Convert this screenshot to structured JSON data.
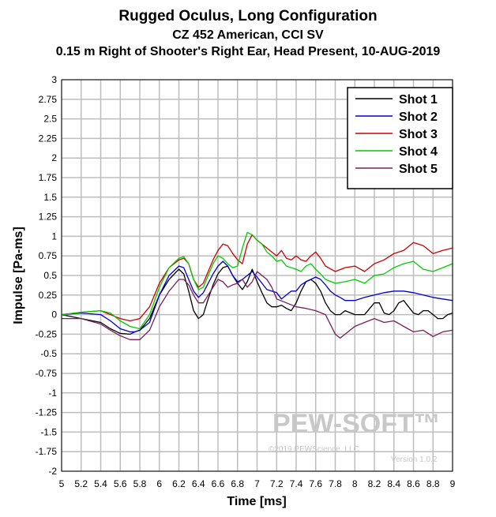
{
  "chart_data": {
    "type": "line",
    "title": "Rugged Oculus, Long Configuration",
    "subtitle": "CZ 452 American, CCI SV",
    "subtitle2": "0.15 m Right of Shooter's Right Ear, Head Present, 10-AUG-2019",
    "xlabel": "Time [ms]",
    "ylabel": "Impulse [Pa-ms]",
    "xlim": [
      5,
      9
    ],
    "ylim": [
      -2,
      3
    ],
    "xticks": [
      "5",
      "5.2",
      "5.4",
      "5.6",
      "5.8",
      "6",
      "6.2",
      "6.4",
      "6.6",
      "6.8",
      "7",
      "7.2",
      "7.4",
      "7.6",
      "7.8",
      "8",
      "8.2",
      "8.4",
      "8.6",
      "8.8",
      "9"
    ],
    "yticks": [
      "3",
      "2.75",
      "2.5",
      "2.25",
      "2",
      "1.75",
      "1.5",
      "1.25",
      "1",
      "0.75",
      "0.5",
      "0.25",
      "0",
      "-0.25",
      "-0.5",
      "-0.75",
      "-1",
      "-1.25",
      "-1.5",
      "-1.75",
      "-2"
    ],
    "grid": true,
    "legend_position": "top-right",
    "series": [
      {
        "name": "Shot 1",
        "color": "#000000",
        "x": [
          5,
          5.2,
          5.4,
          5.5,
          5.6,
          5.7,
          5.75,
          5.8,
          5.9,
          6.0,
          6.1,
          6.2,
          6.25,
          6.3,
          6.35,
          6.4,
          6.45,
          6.5,
          6.55,
          6.6,
          6.65,
          6.7,
          6.75,
          6.8,
          6.85,
          6.9,
          6.95,
          7.0,
          7.05,
          7.1,
          7.15,
          7.2,
          7.25,
          7.3,
          7.35,
          7.4,
          7.45,
          7.5,
          7.55,
          7.6,
          7.65,
          7.7,
          7.75,
          7.8,
          7.85,
          7.9,
          8.0,
          8.1,
          8.2,
          8.25,
          8.3,
          8.35,
          8.4,
          8.45,
          8.5,
          8.55,
          8.6,
          8.65,
          8.7,
          8.75,
          8.8,
          8.85,
          8.9,
          8.95,
          9.0
        ],
        "values": [
          0,
          -0.05,
          -0.1,
          -0.18,
          -0.24,
          -0.25,
          -0.22,
          -0.2,
          -0.05,
          0.25,
          0.45,
          0.58,
          0.52,
          0.3,
          0.05,
          -0.05,
          0.0,
          0.2,
          0.38,
          0.52,
          0.6,
          0.62,
          0.5,
          0.4,
          0.32,
          0.42,
          0.58,
          0.42,
          0.28,
          0.15,
          0.1,
          0.1,
          0.12,
          0.08,
          0.05,
          0.15,
          0.3,
          0.42,
          0.45,
          0.4,
          0.3,
          0.15,
          0.05,
          0.0,
          0.0,
          0.05,
          0.0,
          0.0,
          0.15,
          0.15,
          0.02,
          0.0,
          0.05,
          0.15,
          0.18,
          0.1,
          0.02,
          0.0,
          0.05,
          0.05,
          0.0,
          -0.05,
          -0.05,
          0.0,
          0.02
        ]
      },
      {
        "name": "Shot 2",
        "color": "#0000cc",
        "x": [
          5,
          5.2,
          5.4,
          5.5,
          5.6,
          5.7,
          5.75,
          5.8,
          5.9,
          6.0,
          6.1,
          6.2,
          6.25,
          6.3,
          6.35,
          6.4,
          6.45,
          6.5,
          6.55,
          6.6,
          6.65,
          6.7,
          6.75,
          6.8,
          6.85,
          6.9,
          6.95,
          7.0,
          7.05,
          7.1,
          7.15,
          7.2,
          7.25,
          7.3,
          7.35,
          7.4,
          7.45,
          7.5,
          7.55,
          7.6,
          7.65,
          7.7,
          7.75,
          7.8,
          7.85,
          7.9,
          8.0,
          8.1,
          8.2,
          8.3,
          8.4,
          8.5,
          8.6,
          8.7,
          8.8,
          8.9,
          9.0
        ],
        "values": [
          0,
          0.02,
          0.0,
          -0.08,
          -0.18,
          -0.22,
          -0.22,
          -0.2,
          -0.1,
          0.25,
          0.5,
          0.62,
          0.6,
          0.45,
          0.3,
          0.22,
          0.28,
          0.4,
          0.52,
          0.62,
          0.68,
          0.62,
          0.5,
          0.42,
          0.45,
          0.5,
          0.55,
          0.48,
          0.4,
          0.32,
          0.3,
          0.28,
          0.2,
          0.25,
          0.3,
          0.3,
          0.38,
          0.42,
          0.45,
          0.48,
          0.45,
          0.38,
          0.3,
          0.25,
          0.22,
          0.18,
          0.18,
          0.22,
          0.25,
          0.28,
          0.3,
          0.3,
          0.28,
          0.25,
          0.22,
          0.2,
          0.18
        ]
      },
      {
        "name": "Shot 3",
        "color": "#cc0000",
        "x": [
          5,
          5.2,
          5.4,
          5.5,
          5.6,
          5.7,
          5.8,
          5.9,
          6.0,
          6.1,
          6.2,
          6.25,
          6.3,
          6.35,
          6.4,
          6.45,
          6.5,
          6.55,
          6.6,
          6.65,
          6.7,
          6.75,
          6.8,
          6.85,
          6.9,
          6.95,
          7.0,
          7.05,
          7.1,
          7.15,
          7.2,
          7.25,
          7.3,
          7.35,
          7.4,
          7.45,
          7.5,
          7.55,
          7.6,
          7.65,
          7.7,
          7.8,
          7.9,
          8.0,
          8.1,
          8.2,
          8.3,
          8.4,
          8.5,
          8.6,
          8.7,
          8.8,
          8.9,
          9.0
        ],
        "values": [
          0.0,
          0.03,
          0.05,
          0.0,
          -0.05,
          -0.08,
          -0.05,
          0.1,
          0.4,
          0.6,
          0.7,
          0.72,
          0.65,
          0.45,
          0.35,
          0.4,
          0.55,
          0.7,
          0.82,
          0.9,
          0.88,
          0.78,
          0.7,
          0.65,
          0.9,
          1.02,
          0.95,
          0.9,
          0.85,
          0.8,
          0.75,
          0.82,
          0.72,
          0.7,
          0.75,
          0.7,
          0.68,
          0.75,
          0.8,
          0.72,
          0.62,
          0.55,
          0.6,
          0.62,
          0.55,
          0.65,
          0.7,
          0.78,
          0.82,
          0.92,
          0.88,
          0.78,
          0.82,
          0.85
        ]
      },
      {
        "name": "Shot 4",
        "color": "#00cc00",
        "x": [
          5,
          5.2,
          5.4,
          5.5,
          5.6,
          5.7,
          5.8,
          5.9,
          6.0,
          6.1,
          6.2,
          6.25,
          6.3,
          6.35,
          6.4,
          6.45,
          6.5,
          6.55,
          6.6,
          6.65,
          6.7,
          6.75,
          6.8,
          6.85,
          6.9,
          6.95,
          7.0,
          7.05,
          7.1,
          7.15,
          7.2,
          7.25,
          7.3,
          7.35,
          7.4,
          7.45,
          7.5,
          7.55,
          7.6,
          7.65,
          7.7,
          7.8,
          7.9,
          8.0,
          8.1,
          8.2,
          8.3,
          8.4,
          8.5,
          8.6,
          8.7,
          8.8,
          8.9,
          9.0
        ],
        "values": [
          0.0,
          0.03,
          0.05,
          0.02,
          -0.08,
          -0.15,
          -0.18,
          0.0,
          0.35,
          0.6,
          0.72,
          0.74,
          0.65,
          0.45,
          0.32,
          0.35,
          0.5,
          0.65,
          0.75,
          0.72,
          0.65,
          0.6,
          0.62,
          0.85,
          1.05,
          1.02,
          0.95,
          0.9,
          0.8,
          0.75,
          0.68,
          0.7,
          0.62,
          0.6,
          0.58,
          0.55,
          0.62,
          0.65,
          0.58,
          0.52,
          0.45,
          0.4,
          0.42,
          0.45,
          0.4,
          0.5,
          0.52,
          0.6,
          0.65,
          0.68,
          0.58,
          0.55,
          0.6,
          0.65
        ]
      },
      {
        "name": "Shot 5",
        "color": "#7a1f5a",
        "x": [
          5,
          5.2,
          5.4,
          5.5,
          5.6,
          5.7,
          5.8,
          5.9,
          6.0,
          6.1,
          6.2,
          6.25,
          6.3,
          6.35,
          6.4,
          6.45,
          6.5,
          6.55,
          6.6,
          6.65,
          6.7,
          6.75,
          6.8,
          6.85,
          6.9,
          6.95,
          7.0,
          7.05,
          7.1,
          7.15,
          7.2,
          7.3,
          7.4,
          7.5,
          7.6,
          7.7,
          7.8,
          7.85,
          7.9,
          8.0,
          8.1,
          8.2,
          8.3,
          8.4,
          8.5,
          8.6,
          8.7,
          8.8,
          8.9,
          9.0
        ],
        "values": [
          -0.05,
          -0.05,
          -0.12,
          -0.2,
          -0.27,
          -0.32,
          -0.32,
          -0.2,
          0.1,
          0.3,
          0.45,
          0.45,
          0.38,
          0.25,
          0.15,
          0.15,
          0.25,
          0.35,
          0.45,
          0.42,
          0.35,
          0.38,
          0.4,
          0.45,
          0.35,
          0.42,
          0.55,
          0.5,
          0.45,
          0.35,
          0.2,
          0.15,
          0.1,
          0.08,
          0.05,
          0.0,
          -0.25,
          -0.3,
          -0.25,
          -0.15,
          -0.1,
          -0.05,
          -0.1,
          -0.08,
          -0.15,
          -0.22,
          -0.2,
          -0.28,
          -0.22,
          -0.2
        ]
      }
    ]
  },
  "watermark": {
    "brand": "PEW-SOFT™",
    "copyright": "©2019 PEWScience, LLC",
    "version": "Version 1.0.2"
  }
}
